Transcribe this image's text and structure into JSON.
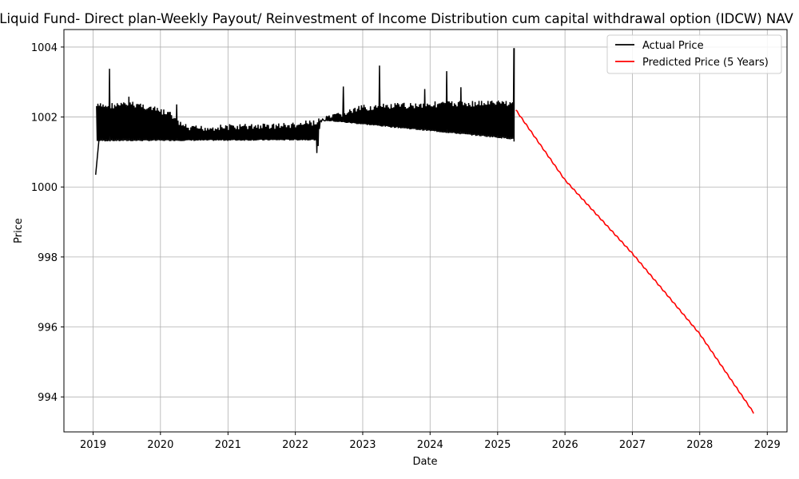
{
  "chart_data": {
    "type": "line",
    "title": "Liquid Fund- Direct plan-Weekly Payout/ Reinvestment of Income Distribution cum capital withdrawal option (IDCW) NAV",
    "xlabel": "Date",
    "ylabel": "Price",
    "x_type": "date",
    "xlim": [
      "2018-07-27",
      "2029-04-18"
    ],
    "ylim": [
      993.0,
      1004.5
    ],
    "x_ticks": [
      "2019",
      "2020",
      "2021",
      "2022",
      "2023",
      "2024",
      "2025",
      "2026",
      "2027",
      "2028",
      "2029"
    ],
    "y_ticks": [
      "994",
      "996",
      "998",
      "1000",
      "1002",
      "1004"
    ],
    "grid": true,
    "legend_position": "top-right",
    "series": [
      {
        "name": "Actual Price",
        "color": "#000000",
        "style": "weekly-oscillating",
        "points": [
          [
            "2019-01-15",
            1000.35
          ],
          [
            "2019-02-01",
            1001.3
          ],
          [
            "2025-03-31",
            1001.3
          ],
          [
            "2025-04-01",
            1003.97
          ]
        ],
        "trough": [
          [
            "2019-01-20",
            1001.3
          ],
          [
            "2022-04-20",
            1001.33
          ],
          [
            "2022-04-30",
            1000.82
          ],
          [
            "2022-05-15",
            1001.9
          ],
          [
            "2025-03-31",
            1001.35
          ]
        ],
        "peak": [
          [
            "2019-01-20",
            1002.4
          ],
          [
            "2019-09-01",
            1002.45
          ],
          [
            "2020-03-01",
            1002.15
          ],
          [
            "2020-04-01",
            1001.95
          ],
          [
            "2020-06-01",
            1001.75
          ],
          [
            "2021-01-01",
            1001.8
          ],
          [
            "2022-01-01",
            1001.85
          ],
          [
            "2022-05-01",
            1001.95
          ],
          [
            "2022-09-01",
            1002.15
          ],
          [
            "2023-01-01",
            1002.35
          ],
          [
            "2024-01-01",
            1002.45
          ],
          [
            "2025-03-31",
            1002.5
          ]
        ],
        "spikes": [
          [
            "2019-04-01",
            1003.38
          ],
          [
            "2019-07-15",
            1002.58
          ],
          [
            "2020-04-01",
            1002.36
          ],
          [
            "2022-09-20",
            1002.87
          ],
          [
            "2023-03-31",
            1003.47
          ],
          [
            "2023-12-01",
            1002.8
          ],
          [
            "2024-03-31",
            1003.31
          ],
          [
            "2024-06-15",
            1002.85
          ],
          [
            "2025-03-31",
            1003.97
          ]
        ]
      },
      {
        "name": "Predicted Price (5 Years)",
        "color": "#ff0000",
        "points": [
          [
            "2025-04-10",
            1002.2
          ],
          [
            "2026-01-01",
            1000.2
          ],
          [
            "2027-01-01",
            998.1
          ],
          [
            "2028-01-01",
            995.8
          ],
          [
            "2028-10-25",
            993.5
          ]
        ]
      }
    ]
  }
}
